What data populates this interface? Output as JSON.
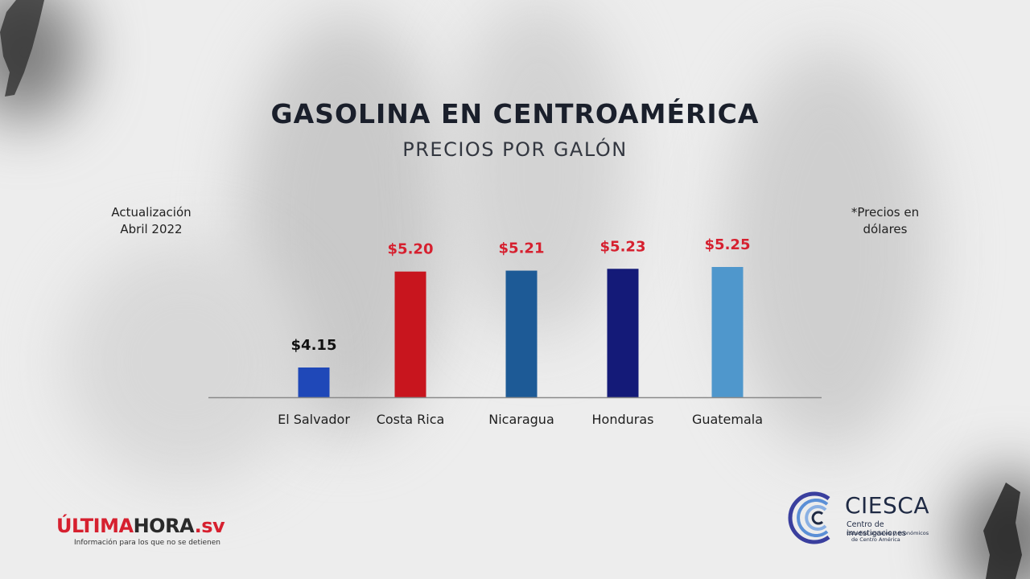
{
  "header": {
    "title": "GASOLINA EN CENTROAMÉRICA",
    "subtitle": "PRECIOS POR GALÓN"
  },
  "notes": {
    "update_line1": "Actualización",
    "update_line2": "Abril 2022",
    "currency_line1": "*Precios en",
    "currency_line2": "dólares"
  },
  "chart_data": {
    "type": "bar",
    "title": "GASOLINA EN CENTROAMÉRICA",
    "subtitle": "PRECIOS POR GALÓN",
    "xlabel": "",
    "ylabel": "",
    "categories": [
      "El Salvador",
      "Costa Rica",
      "Nicaragua",
      "Honduras",
      "Guatemala"
    ],
    "values": [
      4.15,
      5.2,
      5.21,
      5.23,
      5.25
    ],
    "labels": [
      "$4.15",
      "$5.20",
      "$5.21",
      "$5.23",
      "$5.25"
    ],
    "bar_colors": [
      "#1f48b8",
      "#c8151e",
      "#1d5a96",
      "#141a78",
      "#4f97cc"
    ],
    "label_colors": [
      "#111111",
      "#d6202f",
      "#d6202f",
      "#d6202f",
      "#d6202f"
    ],
    "grid": false,
    "axis_color": "#8a8a8a"
  },
  "branding": {
    "ultimahora_red": "ÚLTIMA",
    "ultimahora_dark": "HORA",
    "ultimahora_domain": ".sv",
    "ultimahora_tagline": "Información para los que no se detienen",
    "ciesca_name": "CIESCA",
    "ciesca_line1": "Centro de investigaciones",
    "ciesca_line2": "Estudios sociales y económicos",
    "ciesca_line3": "de Centro América"
  },
  "colors": {
    "accent_red": "#d6202f",
    "title_dark": "#1a1f2b",
    "background": "#ededed"
  }
}
